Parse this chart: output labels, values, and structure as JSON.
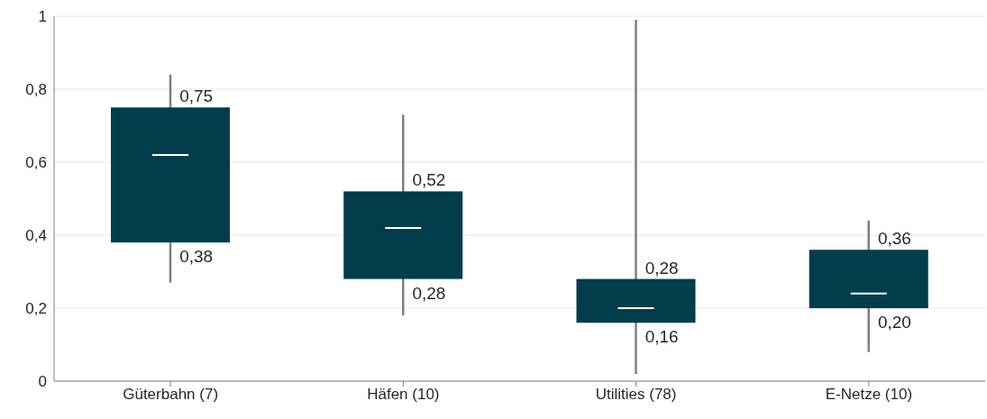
{
  "chart_data": {
    "type": "box",
    "categories": [
      "Güterbahn (7)",
      "Häfen (10)",
      "Utilities (78)",
      "E-Netze (10)"
    ],
    "boxes": [
      {
        "low": 0.27,
        "q1": 0.38,
        "median": 0.62,
        "q3": 0.75,
        "high": 0.84
      },
      {
        "low": 0.18,
        "q1": 0.28,
        "median": 0.42,
        "q3": 0.52,
        "high": 0.73
      },
      {
        "low": 0.02,
        "q1": 0.16,
        "median": 0.2,
        "q3": 0.28,
        "high": 0.99
      },
      {
        "low": 0.08,
        "q1": 0.2,
        "median": 0.24,
        "q3": 0.36,
        "high": 0.44
      }
    ],
    "color": "#023d4c",
    "ylim": [
      0,
      1
    ],
    "yticks": [
      0,
      {
        "value": 0.2,
        "label": "0,2"
      },
      {
        "value": 0.4,
        "label": "0,4"
      },
      {
        "value": 0.6,
        "label": "0,6"
      },
      {
        "value": 0.8,
        "label": "0,8"
      },
      1
    ],
    "grid": "y",
    "annotations": [
      {
        "text": "0,75",
        "x": "Güterbahn (7)",
        "y": 0.75
      },
      {
        "text": "0,38",
        "x": "Güterbahn (7)",
        "y": 0.38
      },
      {
        "text": "0,52",
        "x": "Häfen (10)",
        "y": 0.52
      },
      {
        "text": "0,28",
        "x": "Häfen (10)",
        "y": 0.28
      },
      {
        "text": "0,28",
        "x": "Utilities (78)",
        "y": 0.28
      },
      {
        "text": "0,16",
        "x": "Utilities (78)",
        "y": 0.16
      },
      {
        "text": "0,36",
        "x": "E-Netze (10)",
        "y": 0.36
      },
      {
        "text": "0,20",
        "x": "E-Netze (10)",
        "y": 0.2
      }
    ]
  }
}
